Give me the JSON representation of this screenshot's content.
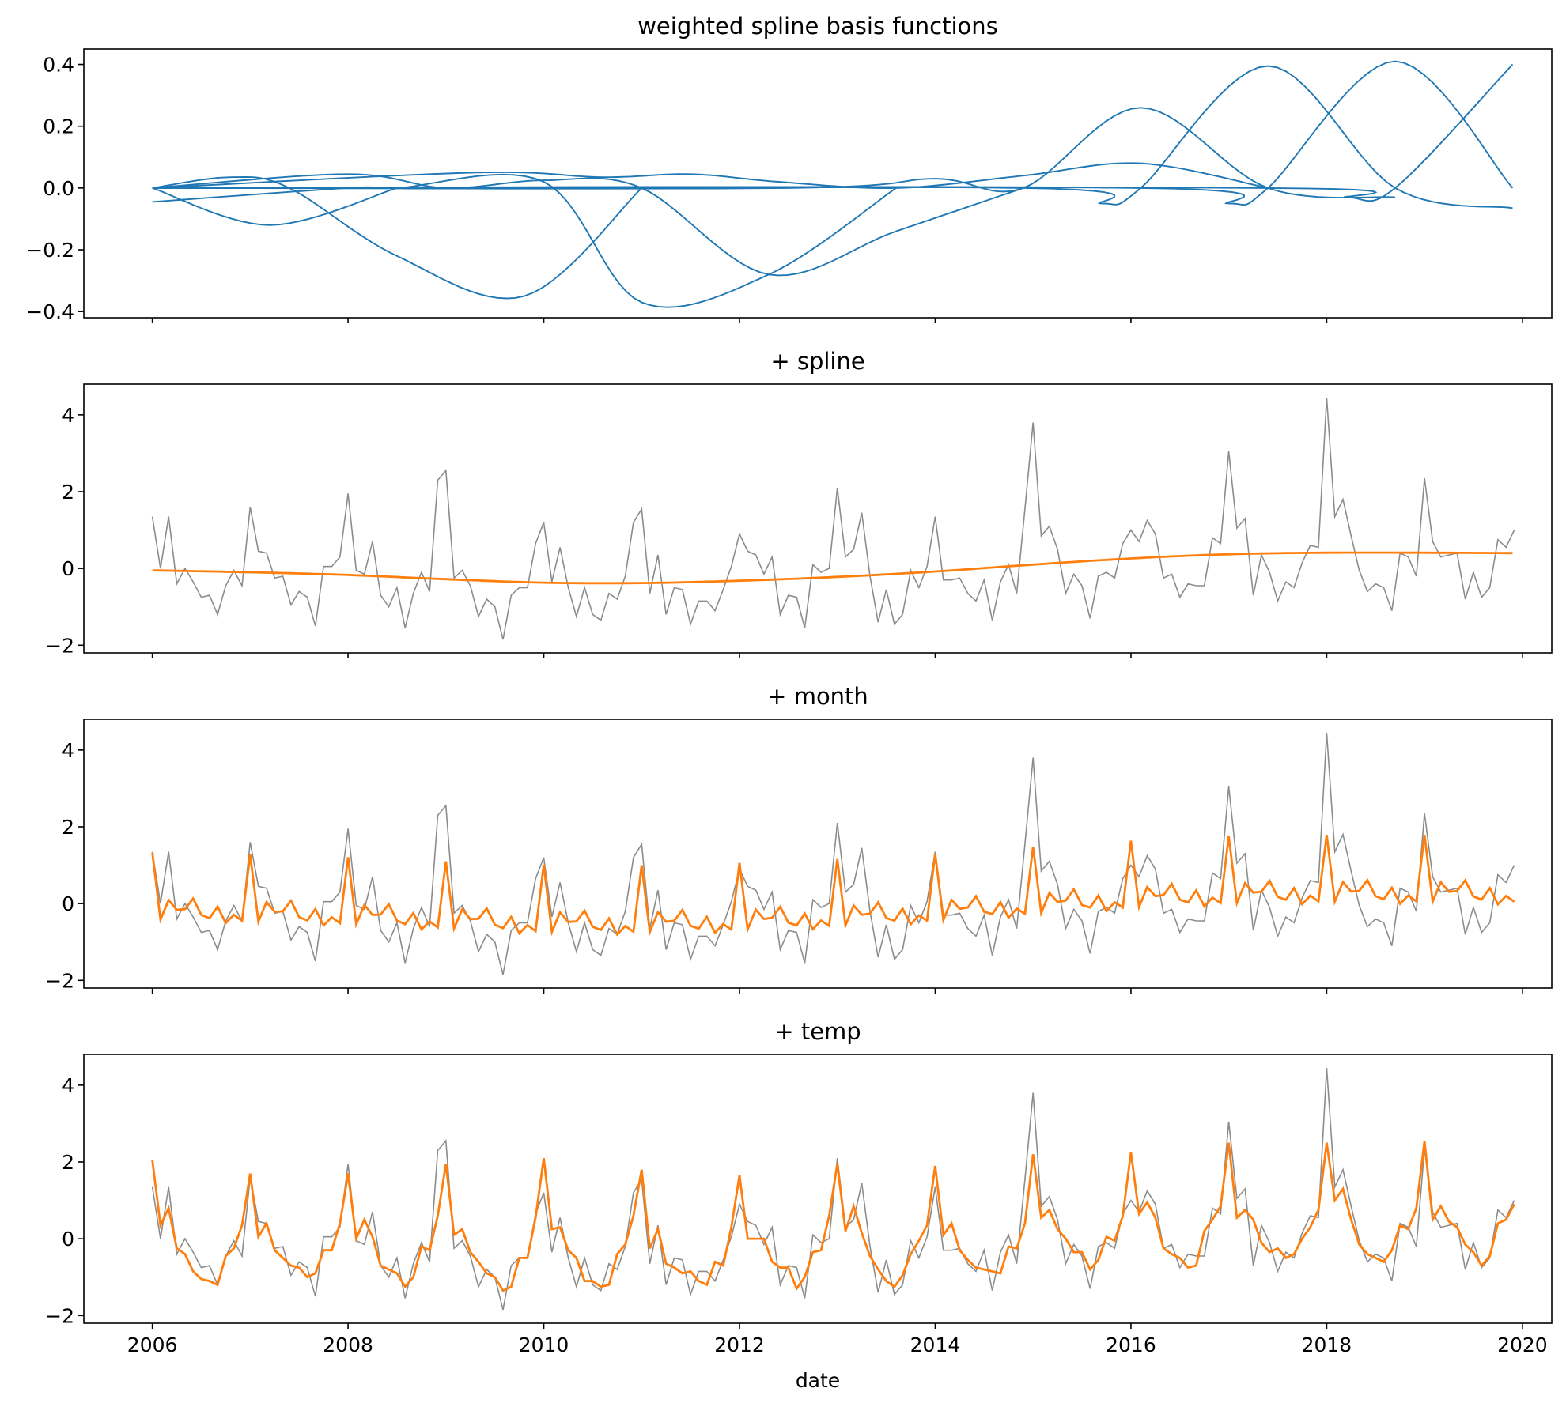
{
  "chart_data": [
    {
      "type": "line",
      "title": "weighted spline basis functions",
      "xlabel": "",
      "ylabel": "",
      "xlim": [
        2005.3,
        2020.3
      ],
      "ylim": [
        -0.42,
        0.45
      ],
      "yticks": [
        -0.4,
        -0.2,
        0.0,
        0.2,
        0.4
      ],
      "ytick_labels": [
        "−0.4",
        "−0.2",
        "0.0",
        "0.2",
        "0.4"
      ],
      "xticks": [
        2006,
        2008,
        2010,
        2012,
        2014,
        2016,
        2018,
        2020
      ],
      "show_xtick_labels": false,
      "legend": "none",
      "grid": false,
      "line_color": "#1f77b4",
      "series": [
        {
          "x": [
            2006.0,
            2007.2,
            2008.5
          ],
          "y": [
            0.0,
            -0.12,
            0.0
          ]
        },
        {
          "x": [
            2006.0,
            2006.8,
            2007.4,
            2008.5,
            2009.8,
            2011.0
          ],
          "y": [
            0.0,
            0.035,
            0.0,
            -0.22,
            -0.35,
            0.0
          ]
        },
        {
          "x": [
            2006.0,
            2008.0,
            2008.5,
            2010.0,
            2011.0,
            2012.3,
            2013.6
          ],
          "y": [
            -0.045,
            0.0,
            0.0,
            0.02,
            -0.37,
            -0.28,
            0.0
          ]
        },
        {
          "x": [
            2006.0,
            2008.0,
            2009.0,
            2010.0,
            2011.0,
            2012.3,
            2013.6,
            2014.9
          ],
          "y": [
            0.0,
            0.045,
            0.0,
            0.025,
            0.0,
            -0.28,
            -0.14,
            0.0
          ]
        },
        {
          "x": [
            2006.0,
            2009.3,
            2010.6,
            2011.5,
            2012.4,
            2013.6,
            2014.9,
            2016.1,
            2017.4
          ],
          "y": [
            0.0,
            0.05,
            0.035,
            0.045,
            0.02,
            0.0,
            0.04,
            0.08,
            0.0
          ]
        },
        {
          "x": [
            2006.0,
            2012.5,
            2014.0,
            2014.9,
            2016.1,
            2017.4,
            2018.7
          ],
          "y": [
            0.0,
            0.0,
            0.03,
            0.0,
            0.26,
            0.0,
            -0.03
          ]
        },
        {
          "x": [
            2006.0,
            2014.9,
            2015.7,
            2016.1,
            2017.4,
            2018.7,
            2019.9
          ],
          "y": [
            0.0,
            0.0,
            -0.05,
            0.0,
            0.395,
            0.0,
            -0.065
          ]
        },
        {
          "x": [
            2006.0,
            2016.1,
            2017.0,
            2017.4,
            2018.7,
            2019.9
          ],
          "y": [
            0.0,
            0.0,
            -0.05,
            0.0,
            0.41,
            0.0
          ]
        },
        {
          "x": [
            2006.0,
            2017.4,
            2018.2,
            2018.7,
            2019.9
          ],
          "y": [
            0.0,
            0.0,
            -0.03,
            0.0,
            0.4
          ]
        }
      ]
    },
    {
      "type": "line",
      "title": "+ spline",
      "xlabel": "",
      "ylabel": "",
      "xlim": [
        2005.3,
        2020.3
      ],
      "ylim": [
        -2.2,
        4.8
      ],
      "yticks": [
        -2,
        0,
        2,
        4
      ],
      "ytick_labels": [
        "−2",
        "0",
        "2",
        "4"
      ],
      "xticks": [
        2006,
        2008,
        2010,
        2012,
        2014,
        2016,
        2018,
        2020
      ],
      "show_xtick_labels": false,
      "legend": "none",
      "grid": false,
      "observed_color": "#8c8c8c",
      "fit_color": "#ff7f0e",
      "fit": {
        "x": [
          2006.0,
          2007.0,
          2008.0,
          2009.0,
          2010.0,
          2011.0,
          2012.0,
          2013.0,
          2014.0,
          2015.0,
          2016.0,
          2017.0,
          2018.0,
          2019.0,
          2019.9
        ],
        "y": [
          -0.05,
          -0.1,
          -0.17,
          -0.28,
          -0.37,
          -0.38,
          -0.32,
          -0.22,
          -0.08,
          0.1,
          0.26,
          0.37,
          0.41,
          0.41,
          0.4
        ]
      }
    },
    {
      "type": "line",
      "title": "+ month",
      "xlabel": "",
      "ylabel": "",
      "xlim": [
        2005.3,
        2020.3
      ],
      "ylim": [
        -2.2,
        4.8
      ],
      "yticks": [
        -2,
        0,
        2,
        4
      ],
      "ytick_labels": [
        "−2",
        "0",
        "2",
        "4"
      ],
      "xticks": [
        2006,
        2008,
        2010,
        2012,
        2014,
        2016,
        2018,
        2020
      ],
      "show_xtick_labels": false,
      "legend": "none",
      "grid": false,
      "observed_color": "#8c8c8c",
      "fit_color": "#ff7f0e",
      "monthly_effect": [
        1.38,
        -0.36,
        0.15,
        -0.1,
        -0.08,
        0.2,
        -0.22,
        -0.3,
        0.0,
        -0.42,
        -0.2,
        -0.35
      ]
    },
    {
      "type": "line",
      "title": "+ temp",
      "xlabel": "date",
      "ylabel": "",
      "xlim": [
        2005.3,
        2020.3
      ],
      "ylim": [
        -2.2,
        4.8
      ],
      "yticks": [
        -2,
        0,
        2,
        4
      ],
      "ytick_labels": [
        "−2",
        "0",
        "2",
        "4"
      ],
      "xticks": [
        2006,
        2008,
        2010,
        2012,
        2014,
        2016,
        2018,
        2020
      ],
      "xtick_labels": [
        "2006",
        "2008",
        "2010",
        "2012",
        "2014",
        "2016",
        "2018",
        "2020"
      ],
      "show_xtick_labels": true,
      "legend": "none",
      "grid": false,
      "observed_color": "#8c8c8c",
      "fit_color": "#ff7f0e"
    }
  ],
  "observed": {
    "start": 2006.0,
    "step": 0.08333,
    "y": [
      1.35,
      0.0,
      1.35,
      -0.4,
      0.0,
      -0.35,
      -0.75,
      -0.7,
      -1.2,
      -0.45,
      -0.05,
      -0.45,
      1.6,
      0.45,
      0.4,
      -0.25,
      -0.2,
      -0.95,
      -0.6,
      -0.75,
      -1.5,
      0.05,
      0.05,
      0.3,
      1.95,
      -0.05,
      -0.15,
      0.7,
      -0.7,
      -1.0,
      -0.5,
      -1.55,
      -0.65,
      -0.1,
      -0.6,
      2.3,
      2.55,
      -0.25,
      -0.05,
      -0.45,
      -1.25,
      -0.8,
      -1.0,
      -1.85,
      -0.7,
      -0.5,
      -0.5,
      0.65,
      1.2,
      -0.35,
      0.55,
      -0.5,
      -1.25,
      -0.5,
      -1.2,
      -1.35,
      -0.65,
      -0.8,
      -0.2,
      1.2,
      1.55,
      -0.65,
      0.35,
      -1.2,
      -0.5,
      -0.55,
      -1.45,
      -0.85,
      -0.85,
      -1.1,
      -0.55,
      0.05,
      0.9,
      0.45,
      0.35,
      -0.15,
      0.3,
      -1.2,
      -0.7,
      -0.75,
      -1.55,
      0.1,
      -0.1,
      0.0,
      2.1,
      0.3,
      0.5,
      1.45,
      -0.2,
      -1.4,
      -0.55,
      -1.45,
      -1.2,
      -0.05,
      -0.5,
      0.05,
      1.35,
      -0.3,
      -0.3,
      -0.25,
      -0.65,
      -0.85,
      -0.3,
      -1.35,
      -0.35,
      0.1,
      -0.65,
      1.55,
      3.8,
      0.85,
      1.1,
      0.5,
      -0.65,
      -0.15,
      -0.45,
      -1.3,
      -0.2,
      -0.1,
      -0.25,
      0.65,
      1.0,
      0.7,
      1.25,
      0.9,
      -0.25,
      -0.15,
      -0.75,
      -0.4,
      -0.45,
      -0.45,
      0.8,
      0.65,
      3.05,
      1.05,
      1.3,
      -0.7,
      0.35,
      -0.1,
      -0.85,
      -0.35,
      -0.5,
      0.15,
      0.6,
      0.55,
      4.45,
      1.35,
      1.8,
      0.85,
      -0.05,
      -0.6,
      -0.4,
      -0.5,
      -1.1,
      0.4,
      0.3,
      -0.2,
      2.35,
      0.7,
      0.3,
      0.35,
      0.4,
      -0.8,
      -0.1,
      -0.75,
      -0.5,
      0.75,
      0.55,
      1.0
    ]
  },
  "temp_fit": {
    "start": 2006.0,
    "step": 0.08333,
    "y": [
      2.05,
      0.35,
      0.8,
      -0.25,
      -0.4,
      -0.85,
      -1.05,
      -1.1,
      -1.2,
      -0.45,
      -0.25,
      0.35,
      1.7,
      0.05,
      0.4,
      -0.3,
      -0.5,
      -0.7,
      -0.75,
      -1.0,
      -0.9,
      -0.3,
      -0.3,
      0.4,
      1.7,
      0.0,
      0.5,
      0.05,
      -0.7,
      -0.8,
      -0.9,
      -1.25,
      -1.0,
      -0.2,
      -0.3,
      0.6,
      1.95,
      0.1,
      0.25,
      -0.35,
      -0.6,
      -0.9,
      -1.0,
      -1.35,
      -1.25,
      -0.5,
      -0.5,
      0.55,
      2.1,
      0.25,
      0.3,
      -0.3,
      -0.5,
      -1.1,
      -1.1,
      -1.25,
      -1.2,
      -0.4,
      -0.15,
      0.6,
      1.8,
      -0.25,
      0.25,
      -0.65,
      -0.75,
      -0.9,
      -0.85,
      -1.1,
      -1.2,
      -0.6,
      -0.7,
      0.3,
      1.65,
      0.0,
      0.0,
      0.0,
      -0.6,
      -0.75,
      -0.75,
      -1.3,
      -1.0,
      -0.35,
      -0.3,
      0.6,
      1.95,
      0.2,
      0.85,
      0.15,
      -0.45,
      -0.8,
      -1.1,
      -1.25,
      -0.95,
      -0.4,
      -0.05,
      0.35,
      1.9,
      0.1,
      0.4,
      -0.3,
      -0.55,
      -0.75,
      -0.8,
      -0.85,
      -0.9,
      -0.2,
      -0.25,
      0.4,
      2.2,
      0.55,
      0.75,
      0.25,
      0.0,
      -0.35,
      -0.35,
      -0.8,
      -0.55,
      0.05,
      -0.05,
      0.6,
      2.25,
      0.65,
      0.95,
      0.55,
      -0.25,
      -0.4,
      -0.5,
      -0.75,
      -0.7,
      0.2,
      0.5,
      0.85,
      2.5,
      0.55,
      0.75,
      0.5,
      -0.1,
      -0.35,
      -0.25,
      -0.5,
      -0.4,
      0.0,
      0.3,
      0.75,
      2.5,
      1.0,
      1.3,
      0.5,
      -0.15,
      -0.4,
      -0.5,
      -0.6,
      -0.3,
      0.35,
      0.25,
      0.8,
      2.55,
      0.5,
      0.85,
      0.45,
      0.3,
      -0.15,
      -0.35,
      -0.7,
      -0.45,
      0.4,
      0.5,
      0.9
    ]
  }
}
